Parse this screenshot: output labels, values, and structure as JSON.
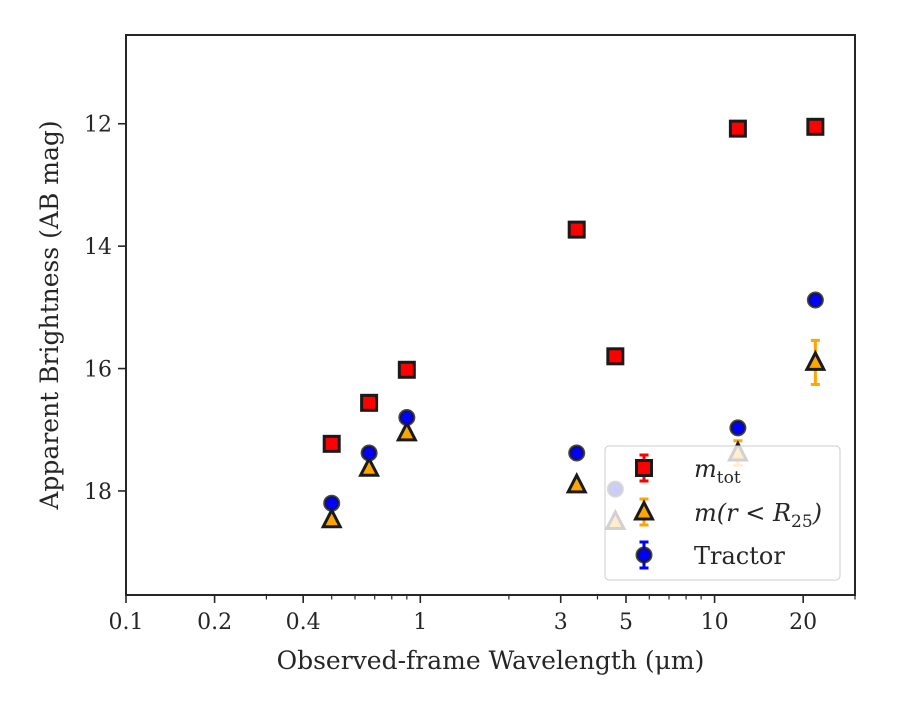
{
  "chart_data": {
    "type": "scatter",
    "xscale": "log",
    "xlim": [
      0.1,
      30
    ],
    "ylim": [
      19.7,
      10.55
    ],
    "y_inverted": true,
    "grid": false,
    "xlabel": "Observed-frame Wavelength (μm)",
    "ylabel": "Apparent Brightness (AB mag)",
    "xticks": [
      {
        "value": 0.1,
        "label": "0.1"
      },
      {
        "value": 0.2,
        "label": "0.2"
      },
      {
        "value": 0.4,
        "label": "0.4"
      },
      {
        "value": 1,
        "label": "1"
      },
      {
        "value": 3,
        "label": "3"
      },
      {
        "value": 5,
        "label": "5"
      },
      {
        "value": 10,
        "label": "10"
      },
      {
        "value": 20,
        "label": "20"
      }
    ],
    "xminor": [
      0.3,
      0.5,
      0.6,
      0.7,
      0.8,
      0.9,
      2,
      4,
      6,
      7,
      8,
      9,
      30
    ],
    "yticks": [
      {
        "value": 12,
        "label": "12"
      },
      {
        "value": 14,
        "label": "14"
      },
      {
        "value": 16,
        "label": "16"
      },
      {
        "value": 18,
        "label": "18"
      }
    ],
    "legend_position": "lower right",
    "series": [
      {
        "name": "m_tot",
        "legend_main": "m",
        "legend_sub": "tot",
        "marker": "square",
        "color": "#ff0000",
        "edge": "#1a1a1a",
        "error_color": "#ff0000",
        "points": [
          {
            "x": 0.5,
            "y": 17.23,
            "err": 0.05
          },
          {
            "x": 0.67,
            "y": 16.56,
            "err": 0.05
          },
          {
            "x": 0.9,
            "y": 16.02,
            "err": 0.05
          },
          {
            "x": 3.4,
            "y": 13.73,
            "err": 0.05
          },
          {
            "x": 4.6,
            "y": 15.8,
            "err": 0.05
          },
          {
            "x": 12.0,
            "y": 12.08,
            "err": 0.05
          },
          {
            "x": 22.0,
            "y": 12.05,
            "err": 0.05
          }
        ]
      },
      {
        "name": "m(r < R_25)",
        "legend_main": "m(r < R",
        "legend_sub": "25",
        "legend_tail": ")",
        "marker": "triangle",
        "color": "#ffa500",
        "edge": "#1a1a1a",
        "error_color": "#ffa500",
        "points": [
          {
            "x": 0.5,
            "y": 18.47,
            "err": 0.05
          },
          {
            "x": 0.67,
            "y": 17.63,
            "err": 0.05
          },
          {
            "x": 0.9,
            "y": 17.05,
            "err": 0.05
          },
          {
            "x": 3.4,
            "y": 17.9,
            "err": 0.05
          },
          {
            "x": 4.6,
            "y": 18.5,
            "err": 0.05
          },
          {
            "x": 12.0,
            "y": 17.38,
            "err": 0.2
          },
          {
            "x": 22.0,
            "y": 15.9,
            "err": 0.36
          }
        ]
      },
      {
        "name": "Tractor",
        "marker": "circle",
        "color": "#0000ff",
        "edge": "#1a1a1a",
        "error_color": "#0000ff",
        "points": [
          {
            "x": 0.5,
            "y": 18.2,
            "err": 0.05
          },
          {
            "x": 0.67,
            "y": 17.38,
            "err": 0.05
          },
          {
            "x": 0.9,
            "y": 16.8,
            "err": 0.05
          },
          {
            "x": 3.4,
            "y": 17.38,
            "err": 0.05
          },
          {
            "x": 4.6,
            "y": 17.97,
            "err": 0.05
          },
          {
            "x": 12.0,
            "y": 16.97,
            "err": 0.05
          },
          {
            "x": 22.0,
            "y": 14.88,
            "err": 0.05
          }
        ]
      }
    ]
  }
}
